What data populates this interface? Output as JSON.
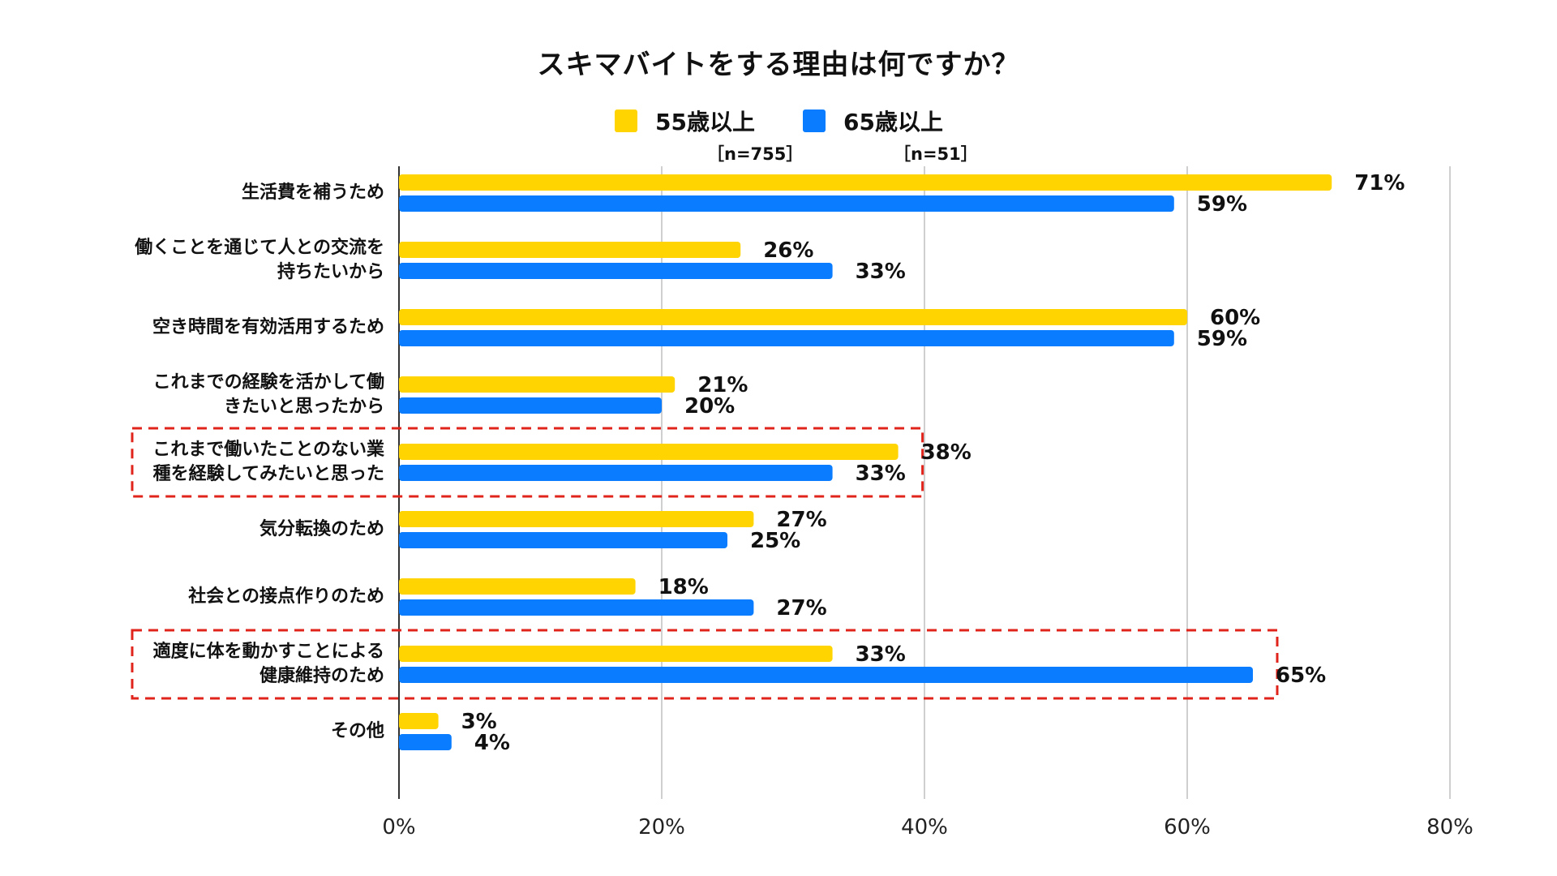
{
  "chart_data": {
    "type": "bar",
    "orientation": "horizontal",
    "title": "スキマバイトをする理由は何ですか？",
    "categories": [
      "生活費を補うため",
      "働くことを通じて人との交流を\n持ちたいから",
      "空き時間を有効活用するため",
      "これまでの経験を活かして働\nきたいと思ったから",
      "これまで働いたことのない業\n種を経験してみたいと思った",
      "気分転換のため",
      "社会との接点作りのため",
      "適度に体を動かすことによる\n健康維持のため",
      "その他"
    ],
    "series": [
      {
        "name": "55歳以上",
        "n_label": "［n=755］",
        "color": "#FFD400",
        "values": [
          71,
          26,
          60,
          21,
          38,
          27,
          18,
          33,
          3
        ]
      },
      {
        "name": "65歳以上",
        "n_label": "［n=51］",
        "color": "#0A7CFF",
        "values": [
          59,
          33,
          59,
          20,
          33,
          25,
          27,
          65,
          4
        ]
      }
    ],
    "value_suffix": "%",
    "xlim": [
      0,
      80
    ],
    "xticks": [
      0,
      20,
      40,
      60,
      80
    ],
    "tick_labels": [
      "0%",
      "20%",
      "40%",
      "60%",
      "80%"
    ],
    "grid": true,
    "legend_position": "top",
    "highlighted_categories": [
      4,
      7
    ],
    "highlight_color": "#E0241B"
  }
}
